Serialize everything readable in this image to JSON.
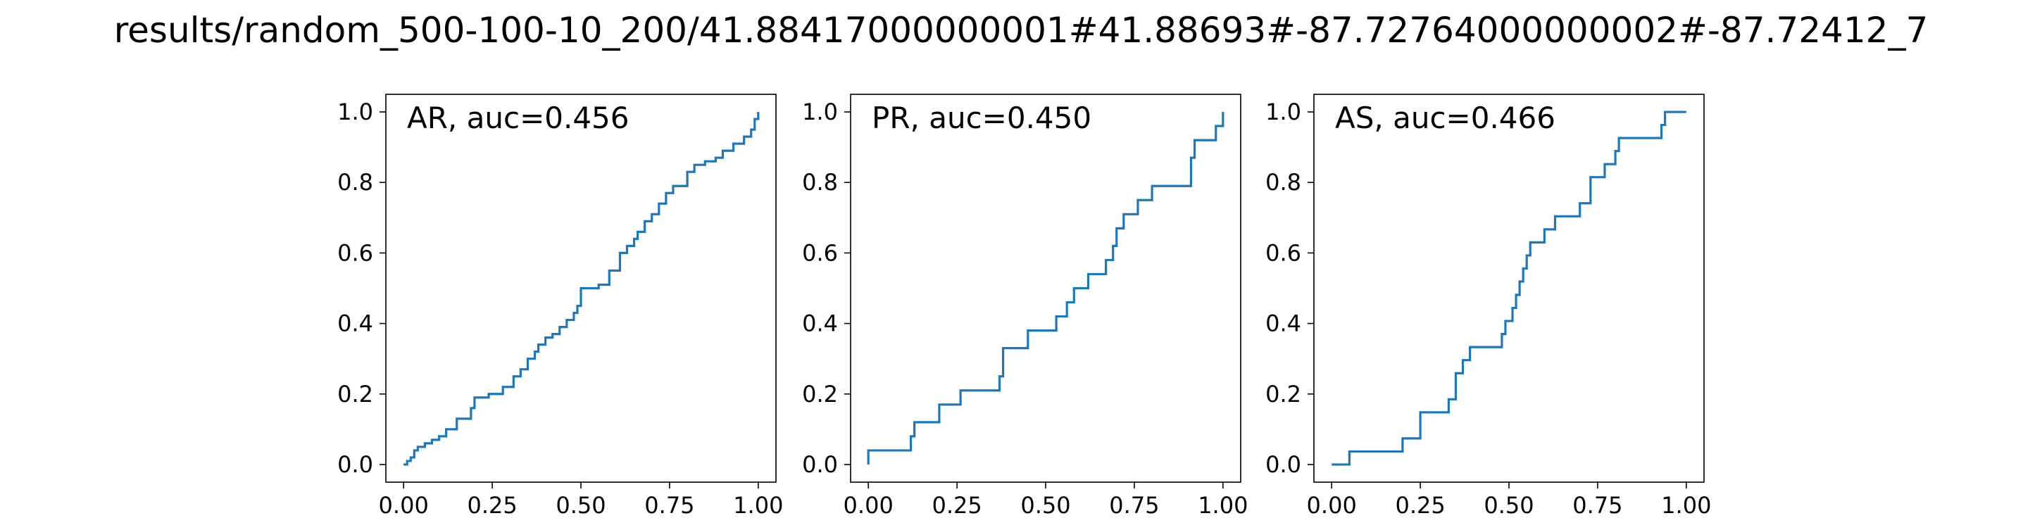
{
  "figure": {
    "title": "results/random_500-100-10_200/41.88417000000001#41.88693#-87.72764000000002#-87.72412_7"
  },
  "chart_data": [
    {
      "type": "line",
      "step": true,
      "label": "AR, auc=0.456",
      "xlim": [
        -0.05,
        1.05
      ],
      "ylim": [
        -0.05,
        1.05
      ],
      "xticks": [
        "0.00",
        "0.25",
        "0.50",
        "0.75",
        "1.00"
      ],
      "yticks": [
        "0.0",
        "0.2",
        "0.4",
        "0.6",
        "0.8",
        "1.0"
      ],
      "grid": false,
      "color": "#1f77b4",
      "series": [
        {
          "x": [
            0.0,
            0.01,
            0.02,
            0.03,
            0.04,
            0.06,
            0.08,
            0.1,
            0.12,
            0.15,
            0.19,
            0.2,
            0.24,
            0.28,
            0.31,
            0.33,
            0.35,
            0.37,
            0.38,
            0.4,
            0.42,
            0.44,
            0.46,
            0.48,
            0.49,
            0.5,
            0.55,
            0.58,
            0.61,
            0.63,
            0.65,
            0.66,
            0.68,
            0.7,
            0.72,
            0.74,
            0.76,
            0.8,
            0.82,
            0.85,
            0.88,
            0.9,
            0.93,
            0.96,
            0.98,
            0.99,
            1.0
          ],
          "y": [
            0.0,
            0.01,
            0.02,
            0.04,
            0.05,
            0.06,
            0.07,
            0.08,
            0.1,
            0.13,
            0.16,
            0.19,
            0.2,
            0.22,
            0.25,
            0.27,
            0.3,
            0.32,
            0.34,
            0.36,
            0.37,
            0.39,
            0.41,
            0.43,
            0.45,
            0.5,
            0.51,
            0.55,
            0.6,
            0.62,
            0.64,
            0.66,
            0.69,
            0.71,
            0.74,
            0.77,
            0.79,
            0.83,
            0.85,
            0.86,
            0.87,
            0.89,
            0.91,
            0.93,
            0.95,
            0.98,
            1.0
          ]
        }
      ]
    },
    {
      "type": "line",
      "step": true,
      "label": "PR, auc=0.450",
      "xlim": [
        -0.05,
        1.05
      ],
      "ylim": [
        -0.05,
        1.05
      ],
      "xticks": [
        "0.00",
        "0.25",
        "0.50",
        "0.75",
        "1.00"
      ],
      "yticks": [
        "0.0",
        "0.2",
        "0.4",
        "0.6",
        "0.8",
        "1.0"
      ],
      "grid": false,
      "color": "#1f77b4",
      "series": [
        {
          "x": [
            0.0,
            0.0,
            0.12,
            0.13,
            0.2,
            0.26,
            0.37,
            0.38,
            0.45,
            0.53,
            0.56,
            0.58,
            0.62,
            0.67,
            0.69,
            0.7,
            0.72,
            0.76,
            0.8,
            0.91,
            0.92,
            0.98,
            1.0
          ],
          "y": [
            0.0,
            0.04,
            0.08,
            0.12,
            0.17,
            0.21,
            0.25,
            0.33,
            0.38,
            0.42,
            0.46,
            0.5,
            0.54,
            0.58,
            0.62,
            0.67,
            0.71,
            0.75,
            0.79,
            0.87,
            0.92,
            0.96,
            1.0
          ]
        }
      ]
    },
    {
      "type": "line",
      "step": true,
      "label": "AS, auc=0.466",
      "xlim": [
        -0.05,
        1.05
      ],
      "ylim": [
        -0.05,
        1.05
      ],
      "xticks": [
        "0.00",
        "0.25",
        "0.50",
        "0.75",
        "1.00"
      ],
      "yticks": [
        "0.0",
        "0.2",
        "0.4",
        "0.6",
        "0.8",
        "1.0"
      ],
      "grid": false,
      "color": "#1f77b4",
      "series": [
        {
          "x": [
            0.0,
            0.05,
            0.2,
            0.25,
            0.33,
            0.35,
            0.37,
            0.39,
            0.48,
            0.49,
            0.51,
            0.52,
            0.53,
            0.54,
            0.55,
            0.56,
            0.6,
            0.63,
            0.7,
            0.73,
            0.77,
            0.8,
            0.81,
            0.82,
            0.93,
            0.94,
            0.98,
            1.0
          ],
          "y": [
            0.0,
            0.037,
            0.074,
            0.148,
            0.185,
            0.259,
            0.296,
            0.333,
            0.37,
            0.407,
            0.444,
            0.481,
            0.519,
            0.556,
            0.593,
            0.63,
            0.667,
            0.704,
            0.741,
            0.815,
            0.852,
            0.889,
            0.926,
            0.926,
            0.963,
            1.0,
            1.0,
            1.0
          ]
        }
      ]
    }
  ]
}
